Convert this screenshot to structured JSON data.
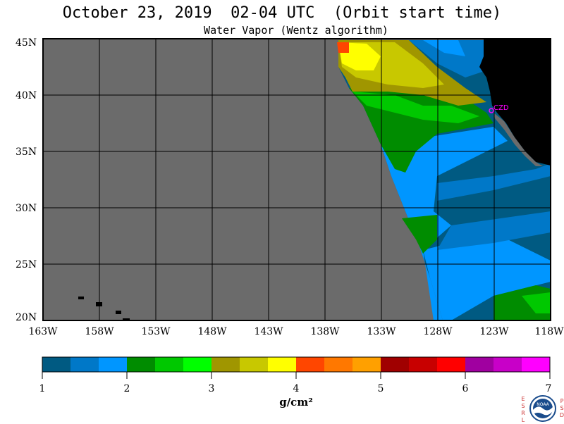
{
  "header": {
    "title": "October 23, 2019  02-04 UTC  (Orbit start time)",
    "subtitle": "Water Vapor (Wentz algorithm)"
  },
  "map": {
    "lat_ticks": [
      "45N",
      "40N",
      "35N",
      "30N",
      "25N",
      "20N"
    ],
    "lon_ticks": [
      "163W",
      "158W",
      "153W",
      "148W",
      "143W",
      "138W",
      "133W",
      "128W",
      "123W",
      "118W"
    ],
    "station_label": "CZD",
    "colors": {
      "no_data": "#6b6b6b",
      "land": "#000000",
      "grid": "#000000"
    }
  },
  "colorbar": {
    "labels": [
      "1",
      "2",
      "3",
      "4",
      "5",
      "6",
      "7"
    ],
    "units": "g/cm²",
    "colors": [
      "#005a82",
      "#0078c8",
      "#0096ff",
      "#008c00",
      "#00c800",
      "#00ff00",
      "#a09600",
      "#c8c800",
      "#ffff00",
      "#ff4600",
      "#ff7800",
      "#ffa000",
      "#a00000",
      "#c80000",
      "#ff0000",
      "#a000a0",
      "#c800c8",
      "#ff00ff"
    ]
  },
  "logo": {
    "left_letters": [
      "E",
      "S",
      "R",
      "L"
    ],
    "right_letters": [
      "P",
      "S",
      "D"
    ],
    "text": "NOAA"
  }
}
